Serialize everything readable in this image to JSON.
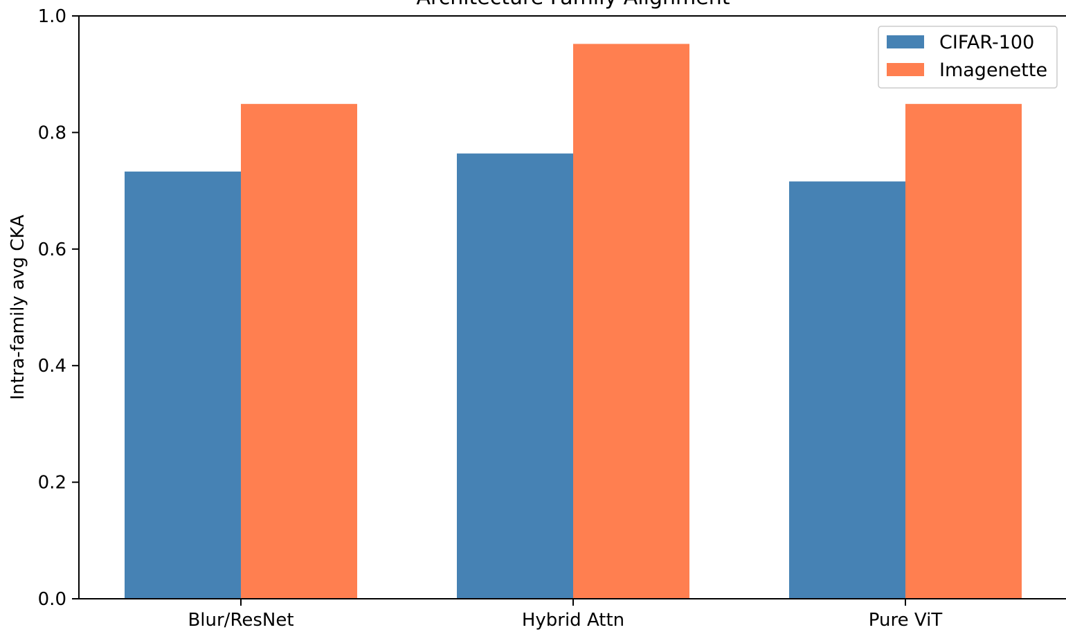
{
  "chart_data": {
    "type": "bar",
    "title": "Architecture Family Alignment",
    "xlabel": "",
    "ylabel": "Intra-family avg CKA",
    "categories": [
      "Blur/ResNet",
      "Hybrid Attn",
      "Pure ViT"
    ],
    "series": [
      {
        "name": "CIFAR-100",
        "values": [
          0.733,
          0.764,
          0.716
        ],
        "color": "#4682b4"
      },
      {
        "name": "Imagenette",
        "values": [
          0.849,
          0.952,
          0.849
        ],
        "color": "#ff7f50"
      }
    ],
    "ylim": [
      0.0,
      1.0
    ],
    "yticks": [
      0.0,
      0.2,
      0.4,
      0.6,
      0.8,
      1.0
    ],
    "ytick_labels": [
      "0.0",
      "0.2",
      "0.4",
      "0.6",
      "0.8",
      "1.0"
    ],
    "grid": false,
    "legend_position": "top-right"
  }
}
